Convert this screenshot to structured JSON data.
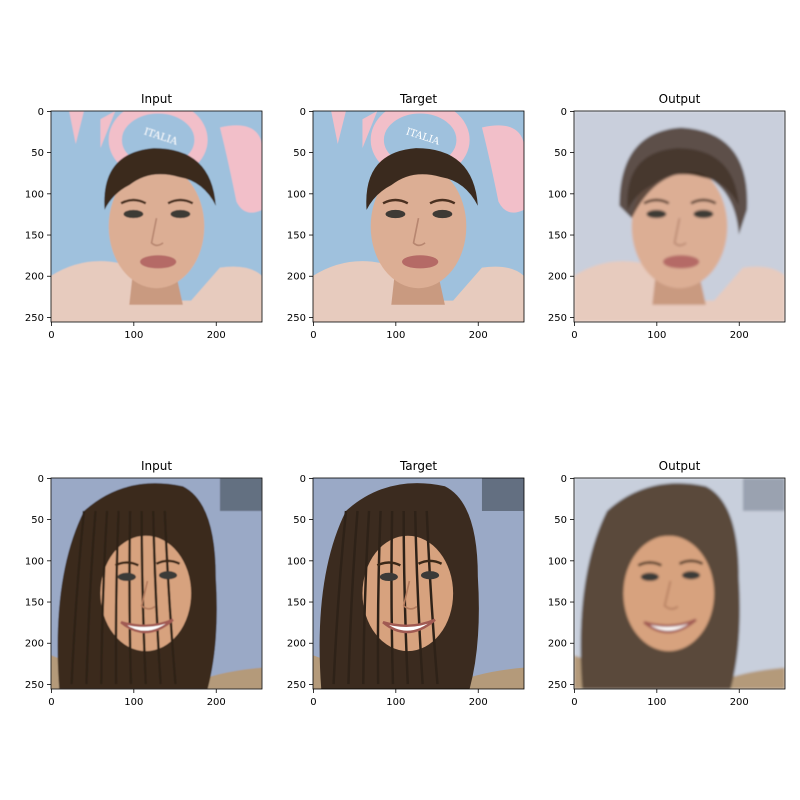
{
  "panels": [
    {
      "title": "Input",
      "row": 0,
      "col": 0,
      "scene": "portrait-a",
      "variant": "input"
    },
    {
      "title": "Target",
      "row": 0,
      "col": 1,
      "scene": "portrait-a",
      "variant": "target"
    },
    {
      "title": "Output",
      "row": 0,
      "col": 2,
      "scene": "portrait-a",
      "variant": "output"
    },
    {
      "title": "Input",
      "row": 1,
      "col": 0,
      "scene": "portrait-b",
      "variant": "input"
    },
    {
      "title": "Target",
      "row": 1,
      "col": 1,
      "scene": "portrait-b",
      "variant": "target"
    },
    {
      "title": "Output",
      "row": 1,
      "col": 2,
      "scene": "portrait-b",
      "variant": "output"
    }
  ],
  "axes": {
    "x_ticks": [
      0,
      100,
      200
    ],
    "y_ticks": [
      0,
      50,
      100,
      150,
      200,
      250
    ],
    "range": [
      0,
      256
    ]
  },
  "overlay_text": "ITALIA",
  "colors": {
    "sky_a": "#9fc1dd",
    "sky_b": "#9aa9c6",
    "hair_dark": "#3a2a1e",
    "skin": "#dcae94",
    "lip": "#b56a66",
    "logo_pink": "#f2bfc9",
    "shirt_a": "#e7cbbe",
    "output_bg": "#c9cfdc"
  }
}
